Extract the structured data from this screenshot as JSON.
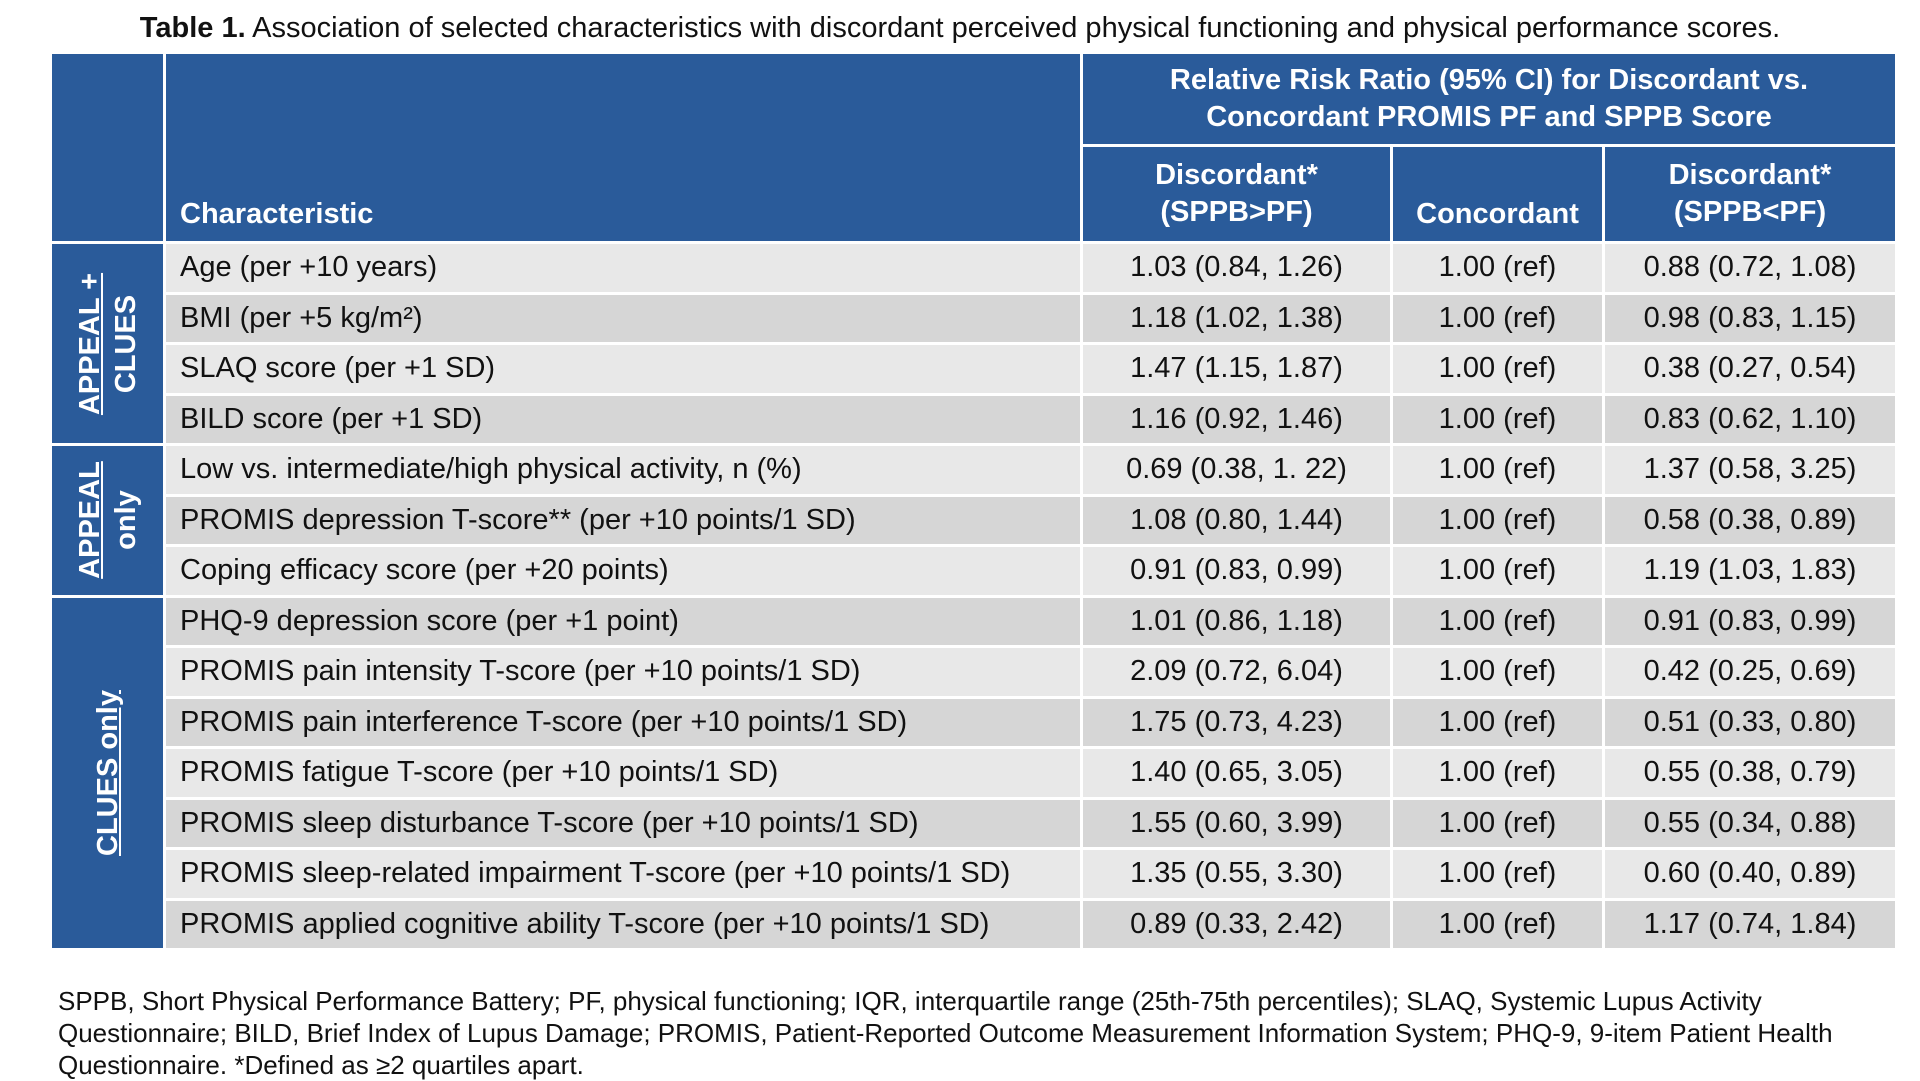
{
  "caption": {
    "label": "Table 1.",
    "text": " Association of selected characteristics with discordant perceived physical functioning and physical performance scores."
  },
  "header": {
    "rr_title": "Relative Risk Ratio (95% CI) for Discordant vs. Concordant PROMIS PF and SPPB Score",
    "characteristic": "Characteristic",
    "col1_line1": "Discordant*",
    "col1_line2": "(SPPB>PF)",
    "col2": "Concordant",
    "col3_line1": "Discordant*",
    "col3_line2": "(SPPB<PF)"
  },
  "groups": [
    {
      "line1": "APPEAL +",
      "line2": "CLUES"
    },
    {
      "line1": "APPEAL",
      "line2": "only"
    },
    {
      "line1": "CLUES only",
      "line2": ""
    }
  ],
  "rows": [
    {
      "characteristic": "Age (per +10 years)",
      "sppb_gt_pf": "1.03 (0.84, 1.26)",
      "concordant": "1.00 (ref)",
      "sppb_lt_pf": "0.88 (0.72, 1.08)"
    },
    {
      "characteristic": "BMI (per +5 kg/m²)",
      "sppb_gt_pf": "1.18 (1.02, 1.38)",
      "concordant": "1.00 (ref)",
      "sppb_lt_pf": "0.98 (0.83, 1.15)"
    },
    {
      "characteristic": "SLAQ score (per +1 SD)",
      "sppb_gt_pf": "1.47 (1.15, 1.87)",
      "concordant": "1.00 (ref)",
      "sppb_lt_pf": "0.38 (0.27, 0.54)"
    },
    {
      "characteristic": "BILD score (per +1 SD)",
      "sppb_gt_pf": "1.16 (0.92, 1.46)",
      "concordant": "1.00 (ref)",
      "sppb_lt_pf": "0.83 (0.62, 1.10)"
    },
    {
      "characteristic": "Low vs. intermediate/high physical activity, n (%)",
      "sppb_gt_pf": "0.69 (0.38, 1. 22)",
      "concordant": "1.00 (ref)",
      "sppb_lt_pf": "1.37 (0.58, 3.25)"
    },
    {
      "characteristic": "PROMIS depression T-score** (per +10 points/1 SD)",
      "sppb_gt_pf": "1.08 (0.80, 1.44)",
      "concordant": "1.00 (ref)",
      "sppb_lt_pf": "0.58 (0.38, 0.89)"
    },
    {
      "characteristic": "Coping efficacy score (per +20 points)",
      "sppb_gt_pf": "0.91 (0.83, 0.99)",
      "concordant": "1.00 (ref)",
      "sppb_lt_pf": "1.19 (1.03, 1.83)"
    },
    {
      "characteristic": "PHQ-9 depression score (per +1 point)",
      "sppb_gt_pf": "1.01 (0.86, 1.18)",
      "concordant": "1.00 (ref)",
      "sppb_lt_pf": "0.91 (0.83, 0.99)"
    },
    {
      "characteristic": "PROMIS pain intensity T-score (per +10 points/1 SD)",
      "sppb_gt_pf": "2.09 (0.72, 6.04)",
      "concordant": "1.00 (ref)",
      "sppb_lt_pf": "0.42 (0.25, 0.69)"
    },
    {
      "characteristic": "PROMIS pain interference T-score (per +10 points/1 SD)",
      "sppb_gt_pf": "1.75 (0.73, 4.23)",
      "concordant": "1.00 (ref)",
      "sppb_lt_pf": "0.51 (0.33, 0.80)"
    },
    {
      "characteristic": "PROMIS fatigue T-score (per +10 points/1 SD)",
      "sppb_gt_pf": "1.40 (0.65, 3.05)",
      "concordant": "1.00 (ref)",
      "sppb_lt_pf": "0.55 (0.38, 0.79)"
    },
    {
      "characteristic": "PROMIS sleep disturbance T-score (per +10 points/1 SD)",
      "sppb_gt_pf": "1.55 (0.60, 3.99)",
      "concordant": "1.00 (ref)",
      "sppb_lt_pf": "0.55 (0.34, 0.88)"
    },
    {
      "characteristic": "PROMIS sleep-related impairment T-score (per +10 points/1 SD)",
      "sppb_gt_pf": "1.35 (0.55, 3.30)",
      "concordant": "1.00 (ref)",
      "sppb_lt_pf": "0.60 (0.40, 0.89)"
    },
    {
      "characteristic": "PROMIS applied cognitive ability T-score (per +10 points/1 SD)",
      "sppb_gt_pf": "0.89 (0.33, 2.42)",
      "concordant": "1.00 (ref)",
      "sppb_lt_pf": "1.17 (0.74, 1.84)"
    }
  ],
  "footnote": "SPPB, Short Physical Performance Battery; PF, physical functioning; IQR, interquartile range (25th-75th percentiles); SLAQ, Systemic Lupus Activity Questionnaire; BILD, Brief Index of Lupus Damage; PROMIS, Patient-Reported Outcome Measurement Information System; PHQ-9, 9-item Patient Health Questionnaire. *Defined as ≥2 quartiles apart.",
  "colors": {
    "header_blue": "#2a5b9a",
    "row_light": "#e8e8e8",
    "row_dark": "#d6d6d6"
  }
}
